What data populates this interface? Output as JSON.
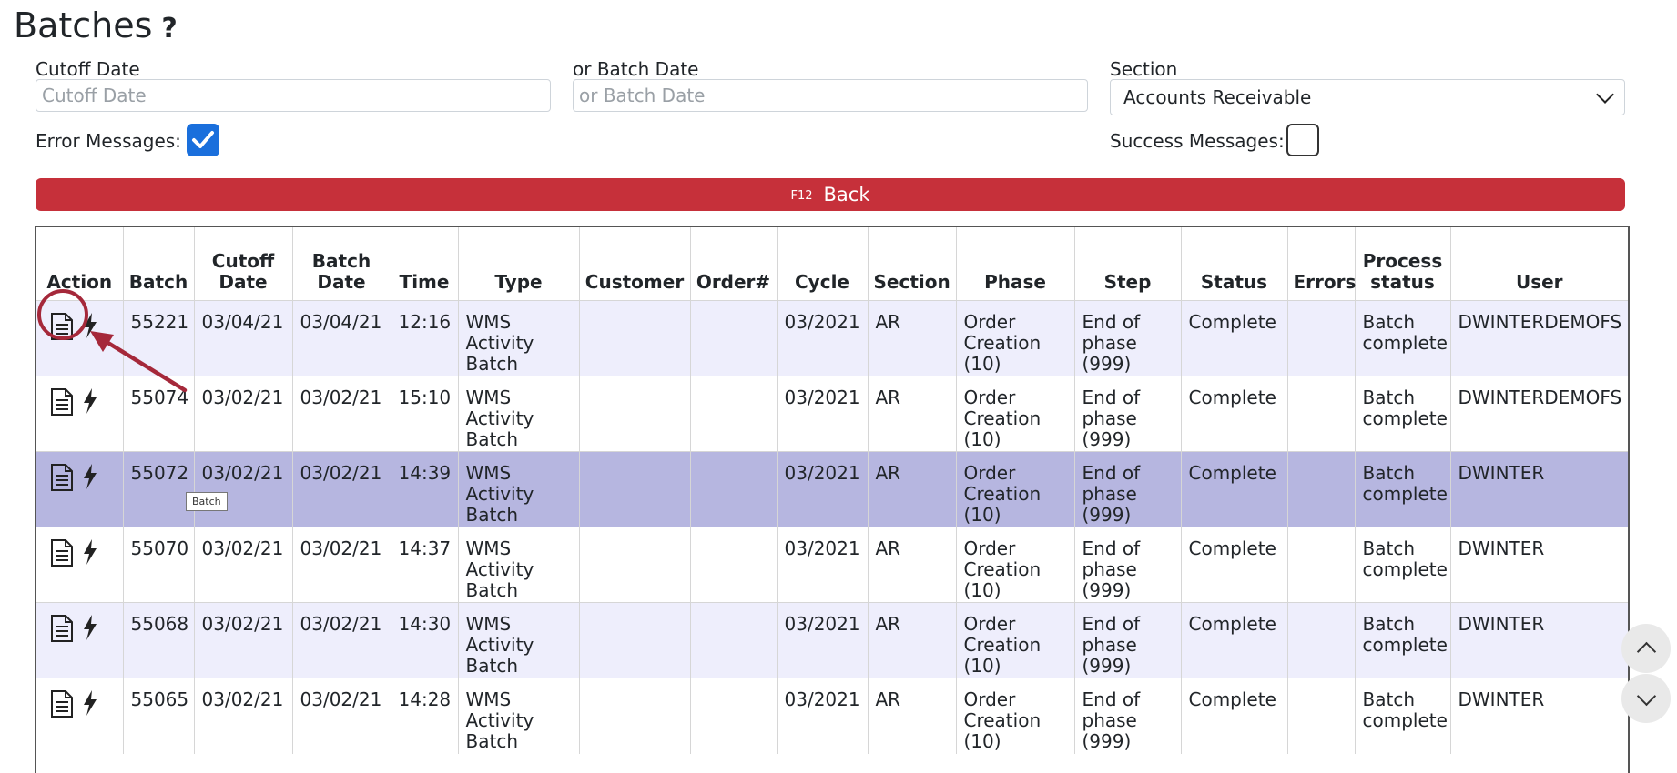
{
  "page": {
    "title": "Batches",
    "help": "?"
  },
  "filters": {
    "cutoff_label": "Cutoff Date",
    "cutoff_placeholder": "Cutoff Date",
    "batch_label": "or Batch Date",
    "batch_placeholder": "or Batch Date",
    "section_label": "Section",
    "section_value": "Accounts Receivable",
    "error_label": "Error Messages:",
    "error_checked": true,
    "success_label": "Success Messages:",
    "success_checked": false
  },
  "back_button": {
    "key": "F12",
    "label": "Back"
  },
  "table": {
    "columns": [
      "Action",
      "Batch",
      "Cutoff Date",
      "Batch Date",
      "Time",
      "Type",
      "Customer",
      "Order#",
      "Cycle",
      "Section",
      "Phase",
      "Step",
      "Status",
      "Errors",
      "Process status",
      "User"
    ],
    "rows": [
      {
        "batch": "55221",
        "cutoff": "03/04/21",
        "batch_date": "03/04/21",
        "time": "12:16",
        "type": "WMS Activity Batch",
        "customer": "",
        "order": "",
        "cycle": "03/2021",
        "section": "AR",
        "phase": "Order Creation (10)",
        "step": "End of phase (999)",
        "status": "Complete",
        "errors": "",
        "process_status": "Batch complete",
        "user": "DWINTERDEMOFS"
      },
      {
        "batch": "55074",
        "cutoff": "03/02/21",
        "batch_date": "03/02/21",
        "time": "15:10",
        "type": "WMS Activity Batch",
        "customer": "",
        "order": "",
        "cycle": "03/2021",
        "section": "AR",
        "phase": "Order Creation (10)",
        "step": "End of phase (999)",
        "status": "Complete",
        "errors": "",
        "process_status": "Batch complete",
        "user": "DWINTERDEMOFS"
      },
      {
        "batch": "55072",
        "cutoff": "03/02/21",
        "batch_date": "03/02/21",
        "time": "14:39",
        "type": "WMS Activity Batch",
        "customer": "",
        "order": "",
        "cycle": "03/2021",
        "section": "AR",
        "phase": "Order Creation (10)",
        "step": "End of phase (999)",
        "status": "Complete",
        "errors": "",
        "process_status": "Batch complete",
        "user": "DWINTER"
      },
      {
        "batch": "55070",
        "cutoff": "03/02/21",
        "batch_date": "03/02/21",
        "time": "14:37",
        "type": "WMS Activity Batch",
        "customer": "",
        "order": "",
        "cycle": "03/2021",
        "section": "AR",
        "phase": "Order Creation (10)",
        "step": "End of phase (999)",
        "status": "Complete",
        "errors": "",
        "process_status": "Batch complete",
        "user": "DWINTER"
      },
      {
        "batch": "55068",
        "cutoff": "03/02/21",
        "batch_date": "03/02/21",
        "time": "14:30",
        "type": "WMS Activity Batch",
        "customer": "",
        "order": "",
        "cycle": "03/2021",
        "section": "AR",
        "phase": "Order Creation (10)",
        "step": "End of phase (999)",
        "status": "Complete",
        "errors": "",
        "process_status": "Batch complete",
        "user": "DWINTER"
      },
      {
        "batch": "55065",
        "cutoff": "03/02/21",
        "batch_date": "03/02/21",
        "time": "14:28",
        "type": "WMS Activity Batch",
        "customer": "",
        "order": "",
        "cycle": "03/2021",
        "section": "AR",
        "phase": "Order Creation (10)",
        "step": "End of phase (999)",
        "status": "Complete",
        "errors": "",
        "process_status": "Batch complete",
        "user": "DWINTER"
      }
    ],
    "selected_row": 2
  },
  "tooltip": {
    "text": "Batch"
  },
  "icons": {
    "view": "document-icon",
    "run": "lightning-icon",
    "scroll_up": "chevron-up-icon",
    "scroll_down": "chevron-down-icon"
  },
  "colors": {
    "accent": "#c6303a",
    "checkbox": "#1a6fdc",
    "row_alt": "#eeeefc",
    "row_selected": "#b6b6e0",
    "annotation": "#a5283a"
  }
}
